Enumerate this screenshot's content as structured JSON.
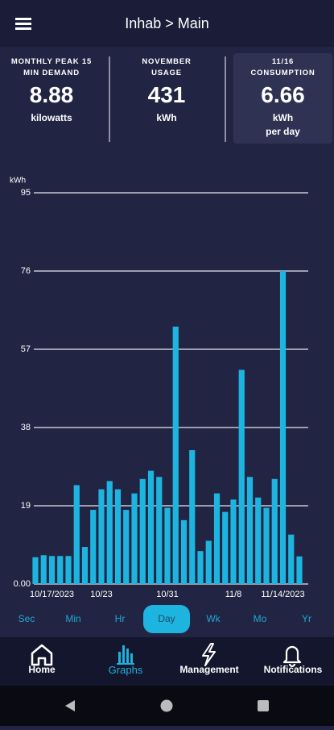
{
  "header": {
    "title": "Inhab > Main"
  },
  "stats": [
    {
      "label": "MONTHLY PEAK 15 MIN DEMAND",
      "value": "8.88",
      "unit": "kilowatts"
    },
    {
      "label": "NOVEMBER USAGE",
      "value": "431",
      "unit": "kWh"
    },
    {
      "label": "11/16 CONSUMPTION",
      "value": "6.66",
      "unit": "kWh per day"
    }
  ],
  "chart_data": {
    "type": "bar",
    "y_label": "kWh",
    "categories": [
      null,
      null,
      "10/17/2023",
      null,
      null,
      null,
      null,
      null,
      "10/23",
      null,
      null,
      null,
      null,
      null,
      null,
      null,
      "10/31",
      null,
      null,
      null,
      null,
      null,
      null,
      null,
      "11/8",
      null,
      null,
      null,
      null,
      null,
      "11/14/2023",
      null,
      null
    ],
    "values": [
      6.5,
      7,
      6.8,
      6.8,
      6.8,
      24,
      9,
      18,
      23,
      25,
      23,
      18,
      22,
      25.5,
      27.5,
      26,
      18.5,
      62.5,
      15.5,
      32.5,
      8,
      10.5,
      22,
      17.5,
      20.5,
      52,
      26,
      21,
      18.5,
      25.5,
      76,
      12,
      6.7
    ],
    "color": "#1db5df",
    "ylim": [
      0,
      95
    ],
    "yticks": [
      {
        "value": 0,
        "label": "0.00"
      },
      19,
      38,
      57,
      76,
      95
    ],
    "grid": true
  },
  "tabs": {
    "items": [
      "Sec",
      "Min",
      "Hr",
      "Day",
      "Wk",
      "Mo",
      "Yr"
    ],
    "selected": "Day"
  },
  "nav": {
    "items": [
      "Home",
      "Graphs",
      "Management",
      "Notifications"
    ],
    "selected": "Graphs"
  }
}
